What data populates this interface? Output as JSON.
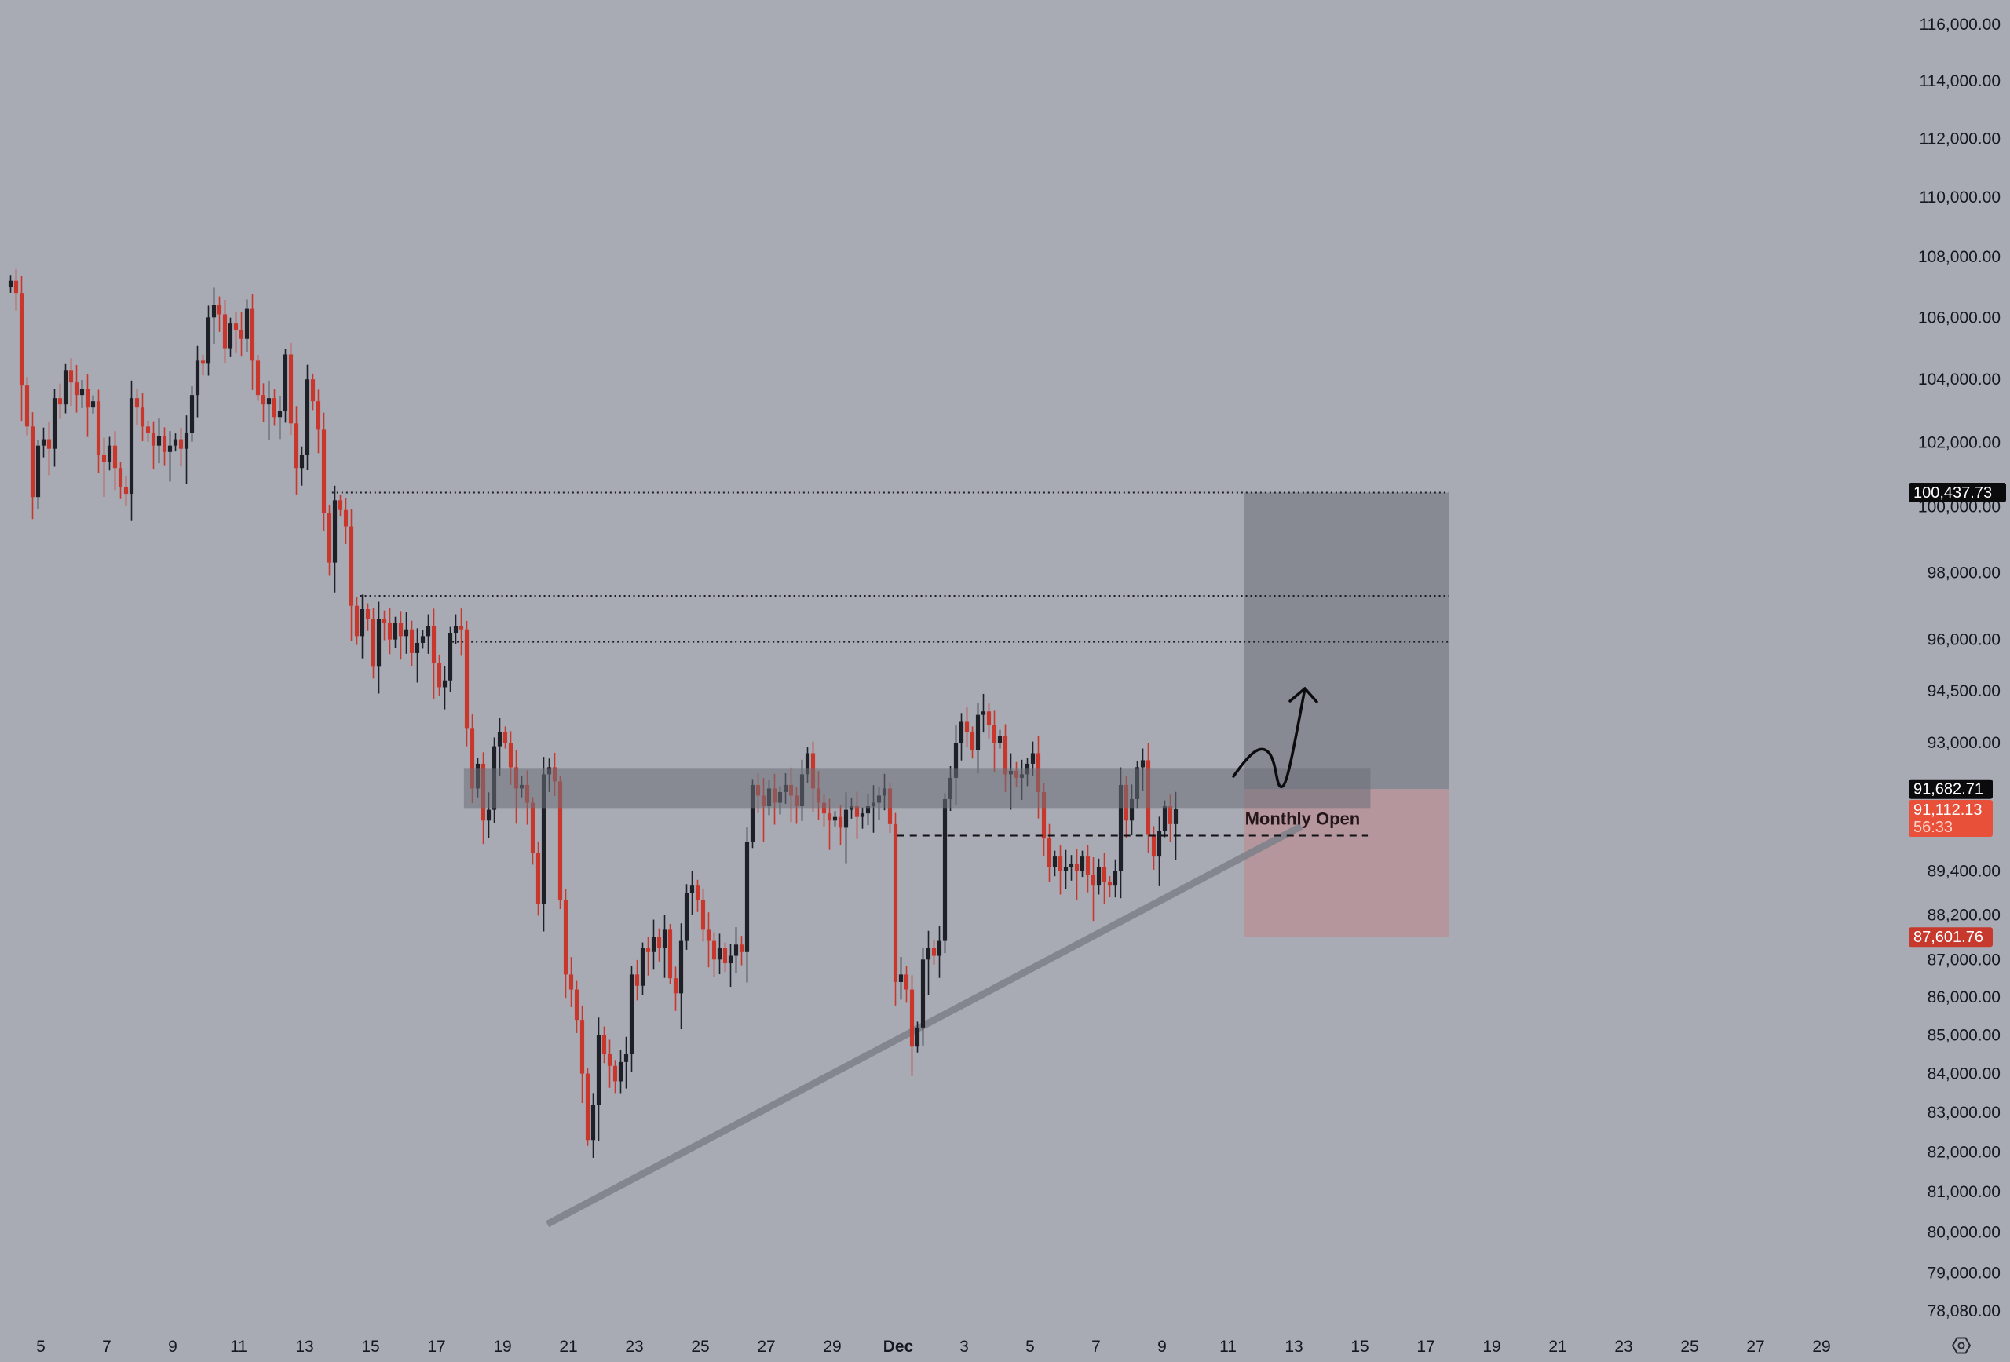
{
  "chart_data": {
    "type": "candlestick",
    "symbol_timeframe": "4h",
    "y_scale": "log",
    "ylim": [
      78080,
      116000
    ],
    "start": "Nov 4 00:00",
    "colors": {
      "background": "#a9abb4",
      "up": "#1e2028",
      "down": "#c9372c",
      "zone": "#6e7078",
      "target": "#7c7f88",
      "stop": "#b98f95",
      "trendline": "#80838c"
    },
    "closes": [
      107200,
      106800,
      103800,
      102500,
      100300,
      101900,
      102100,
      101800,
      103400,
      103200,
      104300,
      103900,
      103500,
      103700,
      103100,
      103300,
      101600,
      101400,
      101900,
      101200,
      100600,
      100400,
      103400,
      103100,
      102500,
      102300,
      101900,
      102200,
      101700,
      101900,
      102100,
      101800,
      102300,
      103500,
      104600,
      104500,
      106000,
      106400,
      106100,
      105000,
      105800,
      105600,
      105300,
      106300,
      104600,
      103500,
      103200,
      103400,
      102800,
      103000,
      104800,
      102600,
      101200,
      101600,
      104000,
      103300,
      102400,
      99800,
      98300,
      100200,
      99900,
      99400,
      97000,
      96100,
      96900,
      96600,
      95200,
      96600,
      96500,
      96000,
      96500,
      96100,
      96300,
      95600,
      95900,
      96100,
      96400,
      95300,
      94600,
      94800,
      96200,
      96400,
      96300,
      93400,
      91700,
      92400,
      90800,
      91100,
      92900,
      93300,
      93000,
      92300,
      91700,
      91800,
      91300,
      89900,
      88500,
      92100,
      92300,
      91900,
      88600,
      86600,
      86200,
      85400,
      84000,
      82300,
      83200,
      85000,
      84500,
      84200,
      83800,
      84300,
      84500,
      86600,
      86300,
      87300,
      87200,
      87600,
      87300,
      87800,
      86500,
      86100,
      87500,
      88800,
      89000,
      88600,
      87800,
      87500,
      87000,
      87300,
      86900,
      87100,
      87400,
      87200,
      90200,
      91800,
      91500,
      91200,
      91700,
      91300,
      91600,
      91800,
      91500,
      91200,
      92100,
      92700,
      91700,
      91300,
      91000,
      90800,
      90900,
      90600,
      91100,
      91200,
      90900,
      91000,
      91200,
      91300,
      91500,
      91700,
      90700,
      86400,
      86600,
      86200,
      84700,
      85200,
      87000,
      87300,
      87100,
      87500,
      91400,
      92000,
      93000,
      93600,
      93300,
      92800,
      93800,
      93900,
      93500,
      93000,
      93200,
      92100,
      92200,
      92000,
      92100,
      92400,
      92700,
      91600,
      90300,
      89500,
      89800,
      89400,
      89500,
      89600,
      89400,
      89800,
      89300,
      89000,
      89500,
      89100,
      89000,
      89400,
      91800,
      90800,
      91400,
      92300,
      92500,
      90400,
      89800,
      90500,
      91200,
      90700,
      91112.13
    ],
    "first_open": 107000,
    "price_axis": {
      "ticks": [
        "116,000.00",
        "114,000.00",
        "112,000.00",
        "110,000.00",
        "108,000.00",
        "106,000.00",
        "104,000.00",
        "102,000.00",
        "100,000.00",
        "98,000.00",
        "96,000.00",
        "94,500.00",
        "93,000.00",
        "89,400.00",
        "88,200.00",
        "87,000.00",
        "86,000.00",
        "85,000.00",
        "84,000.00",
        "83,000.00",
        "82,000.00",
        "81,000.00",
        "80,000.00",
        "79,000.00",
        "78,080.00"
      ],
      "tick_values": [
        116000,
        114000,
        112000,
        110000,
        108000,
        106000,
        104000,
        102000,
        100000,
        98000,
        96000,
        94500,
        93000,
        89400,
        88200,
        87000,
        86000,
        85000,
        84000,
        83000,
        82000,
        81000,
        80000,
        79000,
        78080
      ]
    },
    "time_axis": {
      "labels": [
        "5",
        "7",
        "9",
        "11",
        "13",
        "15",
        "17",
        "19",
        "21",
        "23",
        "25",
        "27",
        "29",
        "Dec",
        "3",
        "5",
        "7",
        "9",
        "11",
        "13",
        "15",
        "17",
        "19",
        "21",
        "23",
        "25",
        "27",
        "29"
      ],
      "label_days": [
        5,
        7,
        9,
        11,
        13,
        15,
        17,
        19,
        21,
        23,
        25,
        27,
        29,
        31,
        33,
        35,
        37,
        39,
        41,
        43,
        45,
        47,
        49,
        51,
        53,
        55,
        57,
        59
      ]
    },
    "price_tags": [
      {
        "label": "100,437.73",
        "value": 100437.73,
        "color": "#0b0b0d"
      },
      {
        "label": "91,682.71",
        "value": 91682.71,
        "color": "#0b0b0d"
      },
      {
        "label": "91,112.13",
        "value": 91112.13,
        "sub": "56:33",
        "color": "#e8503a"
      },
      {
        "label": "87,601.76",
        "value": 87601.76,
        "color": "#c8392d"
      }
    ],
    "drawings": {
      "levels": [
        {
          "price": 100437.73,
          "from_day": 13.83,
          "to_day": 47.69,
          "style": "dotted"
        },
        {
          "price": 97300,
          "from_day": 14.68,
          "to_day": 47.69,
          "style": "dotted"
        },
        {
          "price": 95930,
          "from_day": 17.48,
          "to_day": 47.69,
          "style": "dotted"
        }
      ],
      "zone": {
        "top": 92280,
        "bottom": 91150,
        "from_day": 17.83,
        "to_day": 45.32
      },
      "monthly_open": {
        "label": "Monthly Open",
        "price": 90380,
        "from_day": 30.97,
        "to_day": 45.24,
        "label_day": 43.26
      },
      "trendline": {
        "from_day": 20.36,
        "from_price": 80200,
        "to_day": 43.22,
        "to_price": 90640
      },
      "long_position": {
        "entry": 91682.71,
        "target": 100437.73,
        "stop": 87601.76,
        "from_day": 41.5,
        "to_day": 47.69
      }
    }
  },
  "ui": {
    "settings_icon": "gear-hexagon-icon"
  }
}
